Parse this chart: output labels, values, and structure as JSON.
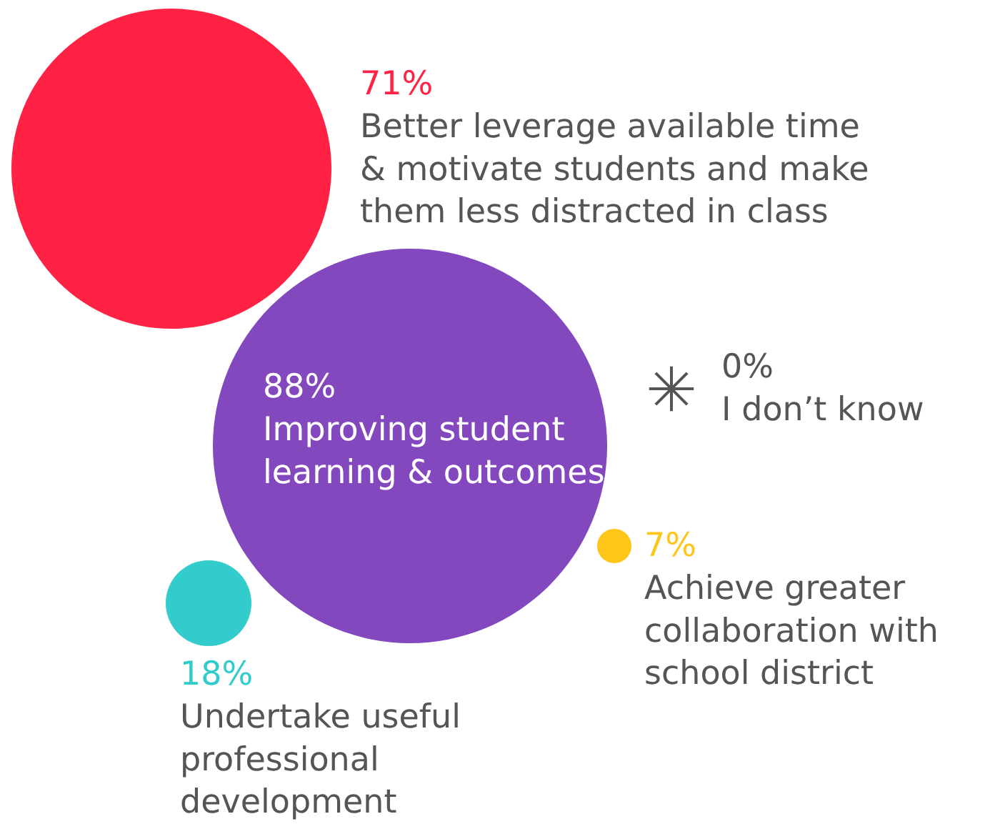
{
  "chart_data": {
    "type": "other",
    "categories": [
      "Better leverage available time & motivate students and make them less distracted in class",
      "Improving student learning & outcomes",
      "I don’t know",
      "Achieve greater collaboration with school district",
      "Undertake useful professional development"
    ],
    "values": [
      71,
      88,
      0,
      7,
      18
    ],
    "value_labels": [
      "71%",
      "88%",
      "0%",
      "7%",
      "18%"
    ],
    "colors": [
      "#ff2244",
      "#8448be",
      "#555555",
      "#ffc61a",
      "#33cccc"
    ]
  }
}
